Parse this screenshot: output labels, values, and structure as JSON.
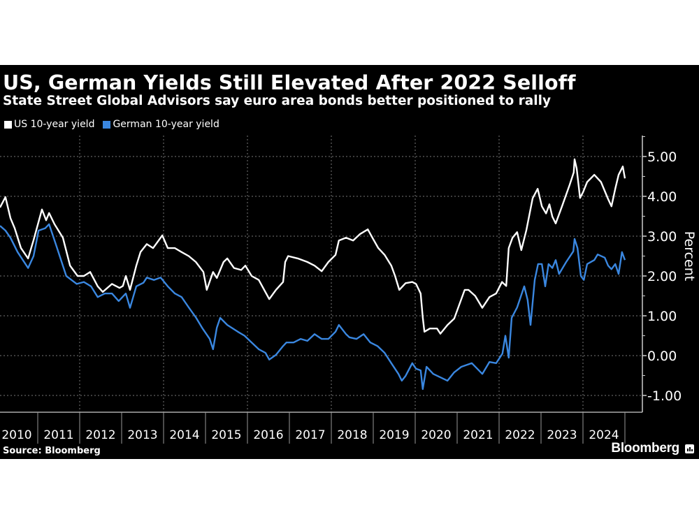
{
  "title": "US, German Yields Still Elevated After 2022 Selloff",
  "subtitle": "State Street Global Advisors say euro area bonds better positioned to rally",
  "source": "Source: Bloomberg",
  "brand": "Bloomberg",
  "colors": {
    "background": "#000000",
    "us": "#ffffff",
    "german": "#3a87e0",
    "grid": "#777777",
    "axis": "#cccccc"
  },
  "chart_data": {
    "type": "line",
    "title": "US, German Yields Still Elevated After 2022 Selloff",
    "subtitle": "State Street Global Advisors say euro area bonds better positioned to rally",
    "xlabel": "",
    "ylabel": "Percent",
    "xlim": [
      2009.9,
      2025.0
    ],
    "ylim": [
      -1.4,
      5.5
    ],
    "grid": true,
    "legend_position": "top-left",
    "x_tick_labels": [
      "2010",
      "2011",
      "2012",
      "2013",
      "2014",
      "2015",
      "2016",
      "2017",
      "2018",
      "2019",
      "2020",
      "2021",
      "2022",
      "2023",
      "2024"
    ],
    "y_ticks": [
      -1,
      0,
      1,
      2,
      3,
      4,
      5
    ],
    "y_tick_labels": [
      "-1.00",
      "0.00",
      "1.00",
      "2.00",
      "3.00",
      "4.00",
      "5.00"
    ],
    "series": [
      {
        "name": "US 10-year yield",
        "color": "#ffffff",
        "points": [
          [
            2010.1,
            3.72
          ],
          [
            2010.23,
            3.98
          ],
          [
            2010.35,
            3.45
          ],
          [
            2010.45,
            3.2
          ],
          [
            2010.6,
            2.7
          ],
          [
            2010.77,
            2.44
          ],
          [
            2010.9,
            2.9
          ],
          [
            2011.1,
            3.67
          ],
          [
            2011.2,
            3.4
          ],
          [
            2011.27,
            3.58
          ],
          [
            2011.4,
            3.3
          ],
          [
            2011.6,
            2.96
          ],
          [
            2011.77,
            2.26
          ],
          [
            2011.95,
            2.0
          ],
          [
            2012.1,
            2.0
          ],
          [
            2012.25,
            2.1
          ],
          [
            2012.43,
            1.74
          ],
          [
            2012.55,
            1.6
          ],
          [
            2012.77,
            1.8
          ],
          [
            2012.95,
            1.7
          ],
          [
            2013.03,
            1.75
          ],
          [
            2013.1,
            2.0
          ],
          [
            2013.2,
            1.65
          ],
          [
            2013.35,
            2.26
          ],
          [
            2013.45,
            2.6
          ],
          [
            2013.6,
            2.8
          ],
          [
            2013.75,
            2.7
          ],
          [
            2013.97,
            3.02
          ],
          [
            2014.1,
            2.7
          ],
          [
            2014.27,
            2.7
          ],
          [
            2014.43,
            2.6
          ],
          [
            2014.6,
            2.5
          ],
          [
            2014.77,
            2.35
          ],
          [
            2014.95,
            2.1
          ],
          [
            2015.03,
            1.65
          ],
          [
            2015.18,
            2.1
          ],
          [
            2015.27,
            1.95
          ],
          [
            2015.43,
            2.35
          ],
          [
            2015.52,
            2.44
          ],
          [
            2015.68,
            2.2
          ],
          [
            2015.85,
            2.15
          ],
          [
            2015.95,
            2.26
          ],
          [
            2016.1,
            2.0
          ],
          [
            2016.27,
            1.9
          ],
          [
            2016.52,
            1.42
          ],
          [
            2016.68,
            1.65
          ],
          [
            2016.85,
            1.85
          ],
          [
            2016.9,
            2.35
          ],
          [
            2016.97,
            2.5
          ],
          [
            2017.2,
            2.44
          ],
          [
            2017.43,
            2.35
          ],
          [
            2017.6,
            2.26
          ],
          [
            2017.77,
            2.12
          ],
          [
            2017.93,
            2.35
          ],
          [
            2018.1,
            2.53
          ],
          [
            2018.18,
            2.89
          ],
          [
            2018.35,
            2.96
          ],
          [
            2018.52,
            2.89
          ],
          [
            2018.68,
            3.05
          ],
          [
            2018.87,
            3.17
          ],
          [
            2018.98,
            2.96
          ],
          [
            2019.12,
            2.7
          ],
          [
            2019.27,
            2.53
          ],
          [
            2019.43,
            2.26
          ],
          [
            2019.52,
            2.0
          ],
          [
            2019.62,
            1.65
          ],
          [
            2019.77,
            1.82
          ],
          [
            2019.93,
            1.85
          ],
          [
            2020.02,
            1.8
          ],
          [
            2020.13,
            1.56
          ],
          [
            2020.18,
            0.96
          ],
          [
            2020.22,
            0.6
          ],
          [
            2020.35,
            0.68
          ],
          [
            2020.52,
            0.68
          ],
          [
            2020.6,
            0.55
          ],
          [
            2020.77,
            0.77
          ],
          [
            2020.93,
            0.93
          ],
          [
            2021.18,
            1.65
          ],
          [
            2021.27,
            1.65
          ],
          [
            2021.43,
            1.5
          ],
          [
            2021.6,
            1.2
          ],
          [
            2021.77,
            1.47
          ],
          [
            2021.93,
            1.56
          ],
          [
            2022.07,
            1.85
          ],
          [
            2022.17,
            1.75
          ],
          [
            2022.23,
            2.7
          ],
          [
            2022.32,
            2.96
          ],
          [
            2022.43,
            3.1
          ],
          [
            2022.53,
            2.65
          ],
          [
            2022.65,
            3.15
          ],
          [
            2022.8,
            3.95
          ],
          [
            2022.92,
            4.19
          ],
          [
            2023.02,
            3.75
          ],
          [
            2023.12,
            3.57
          ],
          [
            2023.2,
            3.8
          ],
          [
            2023.27,
            3.49
          ],
          [
            2023.35,
            3.32
          ],
          [
            2023.5,
            3.75
          ],
          [
            2023.68,
            4.28
          ],
          [
            2023.78,
            4.6
          ],
          [
            2023.8,
            4.93
          ],
          [
            2023.85,
            4.7
          ],
          [
            2023.93,
            3.96
          ],
          [
            2024.0,
            4.1
          ],
          [
            2024.1,
            4.36
          ],
          [
            2024.27,
            4.54
          ],
          [
            2024.43,
            4.36
          ],
          [
            2024.6,
            3.93
          ],
          [
            2024.68,
            3.75
          ],
          [
            2024.77,
            4.19
          ],
          [
            2024.85,
            4.54
          ],
          [
            2024.95,
            4.75
          ],
          [
            2025.0,
            4.45
          ]
        ]
      },
      {
        "name": "German 10-year yield",
        "color": "#3a87e0",
        "points": [
          [
            2010.1,
            3.26
          ],
          [
            2010.23,
            3.14
          ],
          [
            2010.35,
            2.96
          ],
          [
            2010.52,
            2.6
          ],
          [
            2010.77,
            2.2
          ],
          [
            2010.9,
            2.5
          ],
          [
            2011.02,
            3.14
          ],
          [
            2011.18,
            3.2
          ],
          [
            2011.27,
            3.3
          ],
          [
            2011.43,
            2.8
          ],
          [
            2011.68,
            2.0
          ],
          [
            2011.93,
            1.8
          ],
          [
            2012.1,
            1.85
          ],
          [
            2012.27,
            1.74
          ],
          [
            2012.43,
            1.47
          ],
          [
            2012.6,
            1.56
          ],
          [
            2012.77,
            1.56
          ],
          [
            2012.93,
            1.37
          ],
          [
            2013.1,
            1.56
          ],
          [
            2013.2,
            1.2
          ],
          [
            2013.35,
            1.74
          ],
          [
            2013.52,
            1.83
          ],
          [
            2013.6,
            1.96
          ],
          [
            2013.77,
            1.9
          ],
          [
            2013.93,
            1.96
          ],
          [
            2014.1,
            1.74
          ],
          [
            2014.27,
            1.56
          ],
          [
            2014.43,
            1.47
          ],
          [
            2014.6,
            1.21
          ],
          [
            2014.77,
            0.96
          ],
          [
            2014.93,
            0.68
          ],
          [
            2015.1,
            0.42
          ],
          [
            2015.18,
            0.16
          ],
          [
            2015.27,
            0.7
          ],
          [
            2015.35,
            0.95
          ],
          [
            2015.52,
            0.77
          ],
          [
            2015.77,
            0.6
          ],
          [
            2015.93,
            0.5
          ],
          [
            2016.1,
            0.33
          ],
          [
            2016.27,
            0.16
          ],
          [
            2016.43,
            0.07
          ],
          [
            2016.52,
            -0.1
          ],
          [
            2016.68,
            0.02
          ],
          [
            2016.85,
            0.24
          ],
          [
            2016.93,
            0.33
          ],
          [
            2017.1,
            0.33
          ],
          [
            2017.27,
            0.42
          ],
          [
            2017.43,
            0.37
          ],
          [
            2017.6,
            0.54
          ],
          [
            2017.77,
            0.42
          ],
          [
            2017.93,
            0.42
          ],
          [
            2018.1,
            0.6
          ],
          [
            2018.18,
            0.77
          ],
          [
            2018.35,
            0.54
          ],
          [
            2018.43,
            0.46
          ],
          [
            2018.6,
            0.42
          ],
          [
            2018.77,
            0.54
          ],
          [
            2018.93,
            0.33
          ],
          [
            2019.1,
            0.24
          ],
          [
            2019.27,
            0.07
          ],
          [
            2019.43,
            -0.19
          ],
          [
            2019.6,
            -0.46
          ],
          [
            2019.68,
            -0.63
          ],
          [
            2019.77,
            -0.51
          ],
          [
            2019.93,
            -0.19
          ],
          [
            2020.02,
            -0.33
          ],
          [
            2020.13,
            -0.37
          ],
          [
            2020.18,
            -0.84
          ],
          [
            2020.27,
            -0.28
          ],
          [
            2020.43,
            -0.46
          ],
          [
            2020.77,
            -0.63
          ],
          [
            2020.93,
            -0.42
          ],
          [
            2021.1,
            -0.28
          ],
          [
            2021.35,
            -0.19
          ],
          [
            2021.6,
            -0.46
          ],
          [
            2021.77,
            -0.16
          ],
          [
            2021.93,
            -0.19
          ],
          [
            2022.08,
            0.05
          ],
          [
            2022.15,
            0.5
          ],
          [
            2022.23,
            -0.05
          ],
          [
            2022.3,
            0.95
          ],
          [
            2022.43,
            1.21
          ],
          [
            2022.6,
            1.74
          ],
          [
            2022.68,
            1.4
          ],
          [
            2022.75,
            0.77
          ],
          [
            2022.85,
            1.9
          ],
          [
            2022.93,
            2.3
          ],
          [
            2023.02,
            2.3
          ],
          [
            2023.1,
            1.74
          ],
          [
            2023.18,
            2.3
          ],
          [
            2023.27,
            2.2
          ],
          [
            2023.35,
            2.4
          ],
          [
            2023.43,
            2.05
          ],
          [
            2023.6,
            2.35
          ],
          [
            2023.77,
            2.62
          ],
          [
            2023.8,
            2.93
          ],
          [
            2023.87,
            2.7
          ],
          [
            2023.95,
            2.0
          ],
          [
            2024.02,
            1.9
          ],
          [
            2024.1,
            2.3
          ],
          [
            2024.27,
            2.4
          ],
          [
            2024.35,
            2.54
          ],
          [
            2024.52,
            2.46
          ],
          [
            2024.6,
            2.26
          ],
          [
            2024.68,
            2.17
          ],
          [
            2024.77,
            2.3
          ],
          [
            2024.85,
            2.05
          ],
          [
            2024.93,
            2.6
          ],
          [
            2025.0,
            2.4
          ]
        ]
      }
    ]
  }
}
